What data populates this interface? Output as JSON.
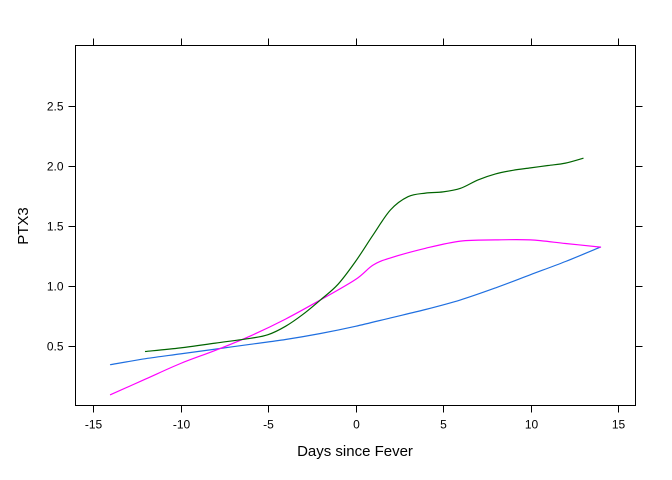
{
  "chart_data": {
    "type": "line",
    "title": "",
    "xlabel": "Days since Fever",
    "ylabel": "PTX3",
    "xlim": [
      -16,
      16
    ],
    "ylim": [
      0,
      3
    ],
    "x_ticks": [
      -15,
      -10,
      -5,
      0,
      5,
      10,
      15
    ],
    "x_tick_labels": [
      "-15",
      "-10",
      "-5",
      "0",
      "5",
      "10",
      "15"
    ],
    "y_ticks": [
      0.5,
      1.0,
      1.5,
      2.0,
      2.5
    ],
    "y_tick_labels": [
      "0.5",
      "1.0",
      "1.5",
      "2.0",
      "2.5"
    ],
    "grid": false,
    "legend": "none",
    "series": [
      {
        "color": "#1f6fe0",
        "x": [
          -14,
          -12,
          -10,
          -8,
          -6,
          -4,
          -2,
          0,
          2,
          4,
          6,
          8,
          10,
          12,
          14
        ],
        "y": [
          0.34,
          0.39,
          0.43,
          0.47,
          0.51,
          0.55,
          0.6,
          0.66,
          0.73,
          0.8,
          0.88,
          0.98,
          1.09,
          1.2,
          1.32
        ]
      },
      {
        "color": "#ff00ff",
        "x": [
          -14,
          -12,
          -10,
          -8,
          -6,
          -4,
          -2,
          0,
          1,
          2,
          4,
          6,
          8,
          10,
          12,
          14
        ],
        "y": [
          0.09,
          0.22,
          0.35,
          0.46,
          0.58,
          0.72,
          0.88,
          1.05,
          1.17,
          1.23,
          1.31,
          1.37,
          1.38,
          1.38,
          1.35,
          1.32
        ]
      },
      {
        "color": "#006400",
        "x": [
          -12,
          -10,
          -8,
          -6,
          -5,
          -4,
          -3,
          -2,
          -1,
          0,
          1,
          2,
          3,
          4,
          5,
          6,
          7,
          8,
          9,
          10,
          11,
          12,
          13
        ],
        "y": [
          0.45,
          0.48,
          0.52,
          0.56,
          0.59,
          0.66,
          0.76,
          0.88,
          1.01,
          1.2,
          1.42,
          1.63,
          1.74,
          1.77,
          1.78,
          1.81,
          1.88,
          1.93,
          1.96,
          1.98,
          2.0,
          2.02,
          2.06
        ]
      }
    ]
  }
}
